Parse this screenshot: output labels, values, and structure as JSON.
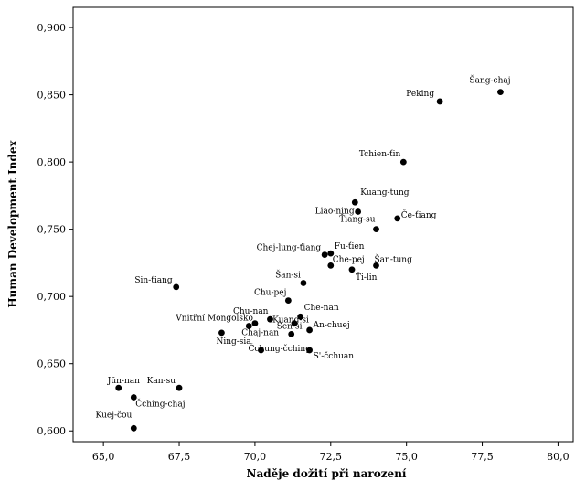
{
  "chart_data": {
    "type": "scatter",
    "xlabel": "Naděje dožití při narození",
    "ylabel": "Human Development Index",
    "xlim": [
      64.0,
      80.5
    ],
    "ylim": [
      0.592,
      0.915
    ],
    "xticks": [
      "65,0",
      "67,5",
      "70,0",
      "72,5",
      "75,0",
      "77,5",
      "80,0"
    ],
    "xtick_values": [
      65.0,
      67.5,
      70.0,
      72.5,
      75.0,
      77.5,
      80.0
    ],
    "yticks": [
      "0,600",
      "0,650",
      "0,700",
      "0,750",
      "0,800",
      "0,850",
      "0,900"
    ],
    "ytick_values": [
      0.6,
      0.65,
      0.7,
      0.75,
      0.8,
      0.85,
      0.9
    ],
    "grid": false,
    "legend": "none",
    "marker_color": "#000000",
    "points": [
      {
        "label": "Šang-chaj",
        "x": 78.1,
        "y": 0.852
      },
      {
        "label": "Peking",
        "x": 76.1,
        "y": 0.845
      },
      {
        "label": "Tchien-ťin",
        "x": 74.9,
        "y": 0.8
      },
      {
        "label": "Kuang-tung",
        "x": 73.3,
        "y": 0.77
      },
      {
        "label": "Liao-ning",
        "x": 73.4,
        "y": 0.763
      },
      {
        "label": "Če-ťiang",
        "x": 74.7,
        "y": 0.758
      },
      {
        "label": "Ťiang-su",
        "x": 74.0,
        "y": 0.75
      },
      {
        "label": "Fu-ťien",
        "x": 72.5,
        "y": 0.732
      },
      {
        "label": "Chej-lung-ťiang",
        "x": 72.3,
        "y": 0.731
      },
      {
        "label": "Che-pej",
        "x": 72.5,
        "y": 0.723
      },
      {
        "label": "Šan-tung",
        "x": 74.0,
        "y": 0.723
      },
      {
        "label": "Ťi-lin",
        "x": 73.2,
        "y": 0.72
      },
      {
        "label": "Šan-si",
        "x": 71.6,
        "y": 0.71
      },
      {
        "label": "Sin-ťiang",
        "x": 67.4,
        "y": 0.707
      },
      {
        "label": "Chu-pej",
        "x": 71.1,
        "y": 0.697
      },
      {
        "label": "Che-nan",
        "x": 71.5,
        "y": 0.685
      },
      {
        "label": "Chu-nan",
        "x": 70.5,
        "y": 0.683
      },
      {
        "label": "Kuang-si",
        "x": 71.3,
        "y": 0.68
      },
      {
        "label": "Vnitřní Mongolsko",
        "x": 70.0,
        "y": 0.68
      },
      {
        "label": "Chaj-nan",
        "x": 69.8,
        "y": 0.678
      },
      {
        "label": "An-chuej",
        "x": 71.8,
        "y": 0.675
      },
      {
        "label": "Šen-si",
        "x": 71.2,
        "y": 0.672
      },
      {
        "label": "Ning-sia",
        "x": 68.9,
        "y": 0.673
      },
      {
        "label": "Čchung-čching",
        "x": 70.2,
        "y": 0.66
      },
      {
        "label": "S'-čchuan",
        "x": 71.8,
        "y": 0.66
      },
      {
        "label": "Jün-nan",
        "x": 65.5,
        "y": 0.632
      },
      {
        "label": "Kan-su",
        "x": 67.5,
        "y": 0.632
      },
      {
        "label": "Čching-chaj",
        "x": 66.0,
        "y": 0.625
      },
      {
        "label": "Kuej-čou",
        "x": 66.0,
        "y": 0.602
      }
    ]
  }
}
